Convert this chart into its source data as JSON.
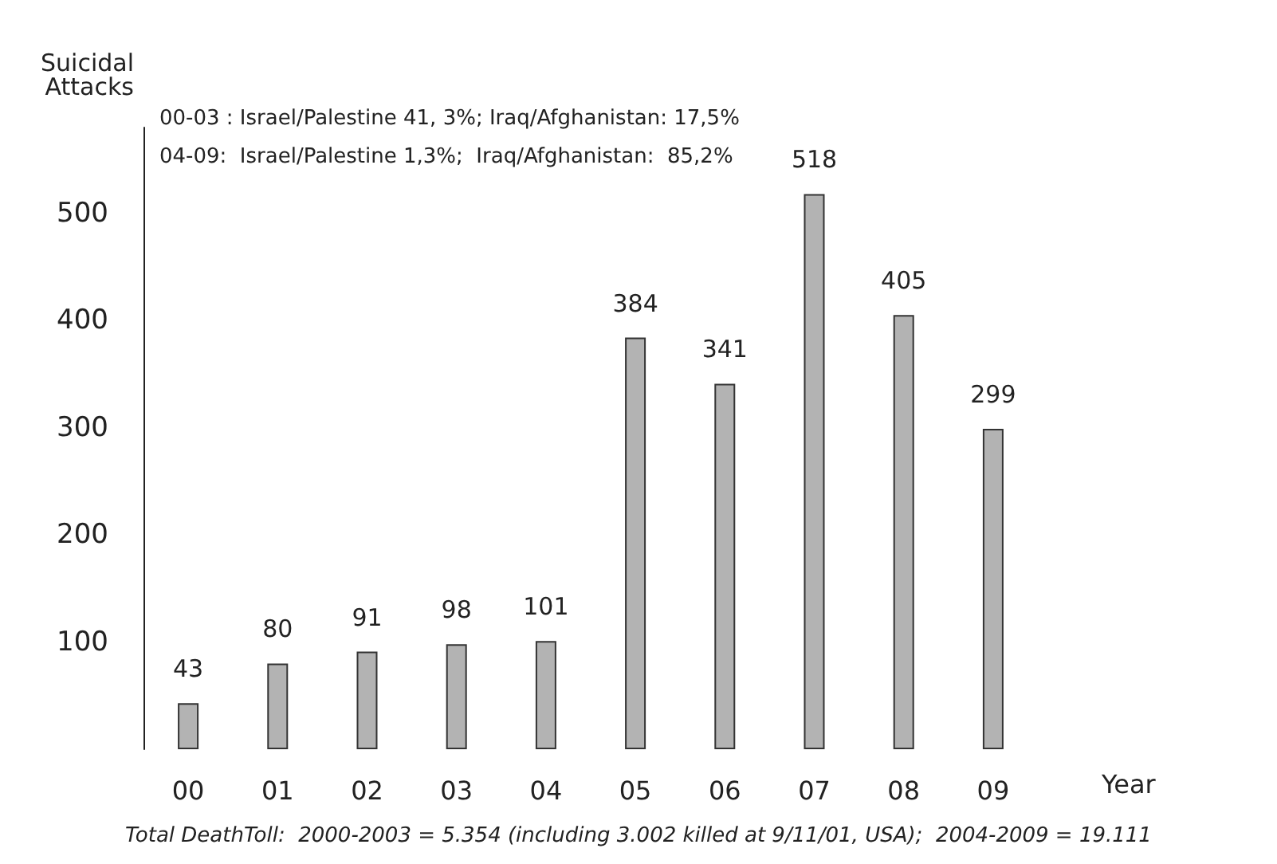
{
  "chart_data": {
    "type": "bar",
    "ylabel": "Suicidal\nAttacks",
    "xlabel": "Year",
    "categories": [
      "00",
      "01",
      "02",
      "03",
      "04",
      "05",
      "06",
      "07",
      "08",
      "09"
    ],
    "values": [
      43,
      80,
      91,
      98,
      101,
      384,
      341,
      518,
      405,
      299
    ],
    "color": "#b3b3b3",
    "data_labels": true,
    "grid": false,
    "ylim": [
      0,
      580
    ],
    "yticks": [
      100,
      200,
      300,
      400,
      500
    ],
    "annotations": [
      "00-03 : Israel/Palestine 41, 3%; Iraq/Afghanistan: 17,5%",
      "04-09:  Israel/Palestine 1,3%;  Iraq/Afghanistan:  85,2%",
      "Total DeathToll:  2000-2003 = 5.354 (including 3.002 killed at 9/11/01, USA);  2004-2009 = 19.111"
    ]
  }
}
